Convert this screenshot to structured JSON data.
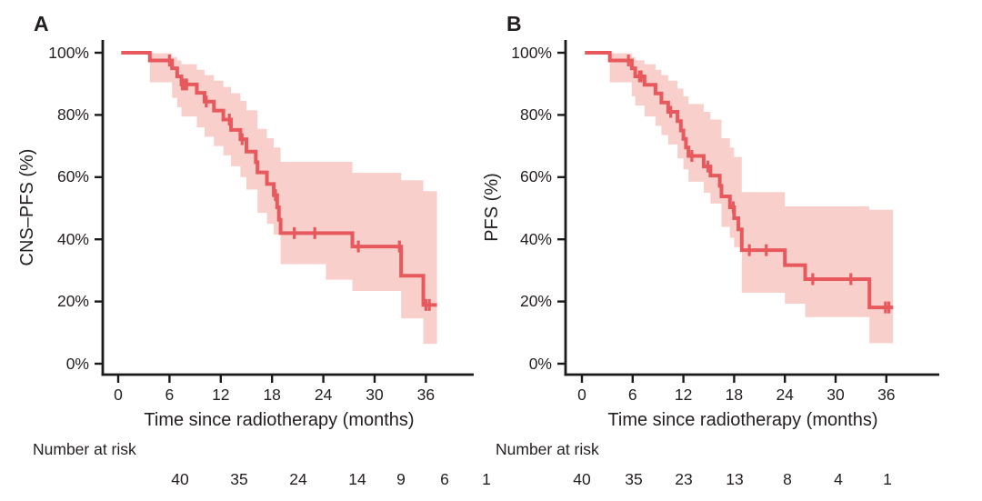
{
  "colors": {
    "curve": "#E7595C",
    "ci_band": "#F9CFCB",
    "axis": "#1A1A1A",
    "text": "#231F20"
  },
  "chart_data": [
    {
      "type": "line",
      "subtype": "kaplan_meier_step",
      "panel_label": "A",
      "ylabel": "CNS–PFS (%)",
      "xlabel": "Time since radiotherapy (months)",
      "xlim": [
        0,
        42
      ],
      "ylim": [
        0,
        100
      ],
      "grid": false,
      "x_ticks": [
        0,
        6,
        12,
        18,
        24,
        30,
        36
      ],
      "x_tick_labels": [
        "0",
        "6",
        "12",
        "18",
        "24",
        "30",
        "36"
      ],
      "y_ticks": [
        100,
        80,
        60,
        40,
        20,
        0
      ],
      "y_tick_labels": [
        "100%",
        "80%",
        "60%",
        "40%",
        "20%",
        "0%"
      ],
      "survival_steps": [
        [
          0,
          100
        ],
        [
          3.7,
          97.5
        ],
        [
          6.3,
          95.0
        ],
        [
          6.9,
          92.4
        ],
        [
          7.4,
          89.8
        ],
        [
          9.2,
          87.1
        ],
        [
          10.1,
          84.3
        ],
        [
          11.2,
          81.4
        ],
        [
          12.3,
          78.5
        ],
        [
          13.2,
          75.2
        ],
        [
          14.3,
          72.2
        ],
        [
          15.0,
          68.2
        ],
        [
          16.1,
          64.8
        ],
        [
          16.3,
          61.5
        ],
        [
          17.4,
          57.8
        ],
        [
          18.2,
          54.2
        ],
        [
          18.6,
          50.3
        ],
        [
          18.8,
          46.3
        ],
        [
          19.0,
          42.0
        ],
        [
          27.4,
          37.7
        ],
        [
          33.1,
          28.3
        ],
        [
          35.7,
          18.9
        ]
      ],
      "curve_end": 37.3,
      "censor_times": [
        6.0,
        7.5,
        7.75,
        8.0,
        10.3,
        13.0,
        14.5,
        18.4,
        20.6,
        23.0,
        28.1,
        32.9,
        36.0,
        36.4
      ],
      "ci_band": [
        [
          3.7,
          90.5,
          99.8
        ],
        [
          6.3,
          85.5,
          98.6
        ],
        [
          6.9,
          82.5,
          97.5
        ],
        [
          7.4,
          79.5,
          96.3
        ],
        [
          9.2,
          76.0,
          94.5
        ],
        [
          10.1,
          73.0,
          92.8
        ],
        [
          11.2,
          70.0,
          91.0
        ],
        [
          12.3,
          67.0,
          89.0
        ],
        [
          13.2,
          63.5,
          87.0
        ],
        [
          14.3,
          60.0,
          84.5
        ],
        [
          15.0,
          56.0,
          81.5
        ],
        [
          16.3,
          48.5,
          75.5
        ],
        [
          17.4,
          45.0,
          72.5
        ],
        [
          18.2,
          41.5,
          69.5
        ],
        [
          19.0,
          32.0,
          64.9
        ],
        [
          24.3,
          27.0,
          64.9
        ],
        [
          27.4,
          23.4,
          61.4
        ],
        [
          33.1,
          14.6,
          59.0
        ],
        [
          35.7,
          6.4,
          55.5
        ]
      ],
      "band_end": 37.3,
      "number_at_risk_label": "Number at risk",
      "number_at_risk": {
        "times": [
          0,
          6,
          12,
          18,
          24,
          30,
          36
        ],
        "counts": [
          "40",
          "35",
          "24",
          "14",
          "9",
          "6",
          "1"
        ]
      }
    },
    {
      "type": "line",
      "subtype": "kaplan_meier_step",
      "panel_label": "B",
      "ylabel": "PFS (%)",
      "xlabel": "Time since radiotherapy (months)",
      "xlim": [
        0,
        42
      ],
      "ylim": [
        0,
        100
      ],
      "grid": false,
      "x_ticks": [
        0,
        6,
        12,
        18,
        24,
        30,
        36
      ],
      "x_tick_labels": [
        "0",
        "6",
        "12",
        "18",
        "24",
        "30",
        "36"
      ],
      "y_ticks": [
        100,
        80,
        60,
        40,
        20,
        0
      ],
      "y_tick_labels": [
        "100%",
        "80%",
        "60%",
        "40%",
        "20%",
        "0%"
      ],
      "survival_steps": [
        [
          0,
          100
        ],
        [
          3.3,
          97.5
        ],
        [
          5.9,
          95.0
        ],
        [
          6.3,
          92.4
        ],
        [
          7.4,
          89.7
        ],
        [
          8.7,
          86.9
        ],
        [
          9.4,
          84.0
        ],
        [
          10.2,
          81.0
        ],
        [
          11.3,
          78.0
        ],
        [
          11.7,
          75.0
        ],
        [
          12.0,
          72.3
        ],
        [
          12.3,
          69.5
        ],
        [
          12.6,
          66.8
        ],
        [
          14.4,
          63.4
        ],
        [
          15.2,
          60.5
        ],
        [
          16.3,
          57.2
        ],
        [
          16.5,
          53.8
        ],
        [
          17.5,
          50.3
        ],
        [
          18.0,
          46.8
        ],
        [
          18.5,
          43.2
        ],
        [
          18.9,
          36.5
        ],
        [
          24.0,
          31.7
        ],
        [
          26.4,
          27.2
        ],
        [
          34.0,
          18.1
        ]
      ],
      "curve_end": 36.8,
      "censor_times": [
        5.5,
        6.8,
        7.0,
        10.5,
        13.0,
        14.9,
        17.9,
        19.8,
        21.8,
        27.3,
        31.8,
        35.9,
        36.3
      ],
      "ci_band": [
        [
          3.3,
          90.5,
          99.8
        ],
        [
          5.9,
          86.0,
          98.6
        ],
        [
          6.3,
          83.0,
          97.6
        ],
        [
          7.4,
          79.5,
          96.3
        ],
        [
          8.7,
          76.5,
          94.5
        ],
        [
          9.4,
          73.5,
          92.8
        ],
        [
          10.2,
          70.5,
          91.0
        ],
        [
          11.3,
          66.0,
          88.5
        ],
        [
          12.0,
          62.5,
          86.0
        ],
        [
          12.6,
          58.5,
          83.5
        ],
        [
          14.4,
          55.0,
          81.0
        ],
        [
          15.2,
          51.5,
          78.5
        ],
        [
          16.5,
          44.0,
          72.5
        ],
        [
          17.5,
          40.5,
          69.5
        ],
        [
          18.0,
          37.5,
          66.5
        ],
        [
          18.9,
          22.8,
          55.2
        ],
        [
          24.0,
          19.3,
          50.6
        ],
        [
          26.4,
          15.0,
          50.6
        ],
        [
          34.0,
          6.6,
          49.5
        ]
      ],
      "band_end": 36.8,
      "number_at_risk_label": "Number at risk",
      "number_at_risk": {
        "times": [
          0,
          6,
          12,
          18,
          24,
          30,
          36
        ],
        "counts": [
          "40",
          "35",
          "23",
          "13",
          "8",
          "4",
          "1"
        ]
      }
    }
  ]
}
